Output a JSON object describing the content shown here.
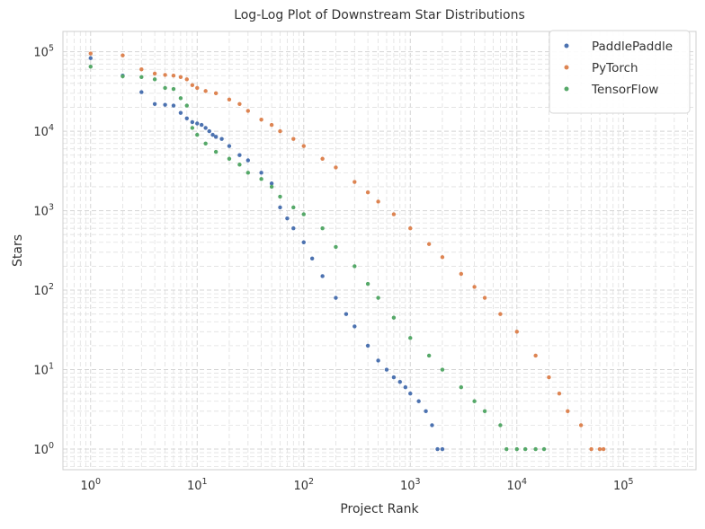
{
  "chart_data": {
    "type": "scatter",
    "title": "Log-Log Plot of Downstream Star Distributions",
    "xlabel": "Project Rank",
    "ylabel": "Stars",
    "xscale": "log",
    "yscale": "log",
    "xlim": [
      0.55,
      480000
    ],
    "ylim": [
      0.55,
      180000
    ],
    "grid": true,
    "legend_position": "top-right",
    "x_ticks": [
      1,
      10,
      100,
      1000,
      10000,
      100000
    ],
    "y_ticks": [
      1,
      10,
      100,
      1000,
      10000,
      100000
    ],
    "series": [
      {
        "name": "PaddlePaddle",
        "color": "#4c72b0",
        "x": [
          1,
          2,
          3,
          4,
          5,
          6,
          7,
          8,
          9,
          10,
          11,
          12,
          13,
          14,
          15,
          17,
          20,
          25,
          30,
          40,
          50,
          60,
          70,
          80,
          100,
          120,
          150,
          200,
          250,
          300,
          400,
          500,
          600,
          700,
          800,
          900,
          1000,
          1200,
          1400,
          1600,
          1800,
          2000
        ],
        "y": [
          83000,
          50000,
          31000,
          22000,
          21500,
          21000,
          17000,
          14500,
          13000,
          12500,
          12000,
          11000,
          10000,
          9000,
          8500,
          8000,
          6500,
          5000,
          4300,
          3000,
          2200,
          1100,
          800,
          600,
          400,
          250,
          150,
          80,
          50,
          35,
          20,
          13,
          10,
          8,
          7,
          6,
          5,
          4,
          3,
          2,
          1,
          1
        ]
      },
      {
        "name": "PyTorch",
        "color": "#dd8452",
        "x": [
          1,
          2,
          3,
          4,
          5,
          6,
          7,
          8,
          9,
          10,
          12,
          15,
          20,
          25,
          30,
          40,
          50,
          60,
          80,
          100,
          150,
          200,
          300,
          400,
          500,
          700,
          1000,
          1500,
          2000,
          3000,
          4000,
          5000,
          7000,
          10000,
          15000,
          20000,
          25000,
          30000,
          40000,
          50000,
          60000,
          65000
        ],
        "y": [
          95000,
          90000,
          60000,
          53000,
          51000,
          50000,
          48000,
          45000,
          38000,
          35000,
          32000,
          30000,
          25000,
          22000,
          18000,
          14000,
          12000,
          10000,
          8000,
          6500,
          4500,
          3500,
          2300,
          1700,
          1300,
          900,
          600,
          380,
          260,
          160,
          110,
          80,
          50,
          30,
          15,
          8,
          5,
          3,
          2,
          1,
          1,
          1
        ]
      },
      {
        "name": "TensorFlow",
        "color": "#55a868",
        "x": [
          1,
          2,
          3,
          4,
          5,
          6,
          7,
          8,
          9,
          10,
          12,
          15,
          20,
          25,
          30,
          40,
          50,
          60,
          80,
          100,
          150,
          200,
          300,
          400,
          500,
          700,
          1000,
          1500,
          2000,
          3000,
          4000,
          5000,
          7000,
          8000,
          10000,
          12000,
          15000,
          18000
        ],
        "y": [
          65000,
          49000,
          48000,
          45000,
          35000,
          34000,
          26000,
          21000,
          11000,
          9000,
          7000,
          5500,
          4500,
          3800,
          3000,
          2500,
          2000,
          1500,
          1100,
          900,
          600,
          350,
          200,
          120,
          80,
          45,
          25,
          15,
          10,
          6,
          4,
          3,
          2,
          1,
          1,
          1,
          1,
          1
        ]
      }
    ]
  }
}
